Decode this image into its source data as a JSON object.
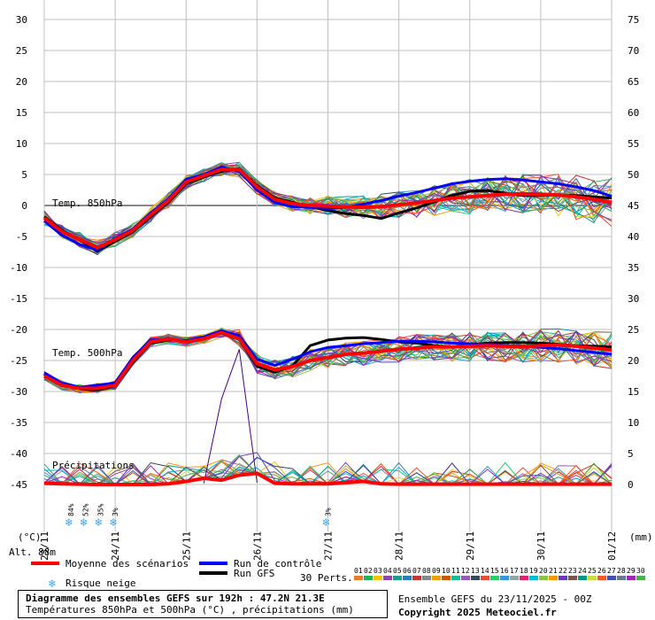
{
  "chart_data": {
    "type": "line",
    "x_ticks": [
      "23/11",
      "24/11",
      "25/11",
      "26/11",
      "27/11",
      "28/11",
      "29/11",
      "30/11",
      "01/12"
    ],
    "xlim": [
      0,
      192
    ],
    "left_axis": {
      "unit": "(°C)",
      "ticks": [
        30,
        25,
        20,
        15,
        10,
        5,
        0,
        -5,
        -10,
        -15,
        -20,
        -25,
        -30,
        -35,
        -40,
        -45
      ],
      "ylim": [
        -45,
        30
      ]
    },
    "right_axis": {
      "unit": "(mm)",
      "ticks": [
        75,
        70,
        65,
        60,
        55,
        50,
        45,
        40,
        35,
        30,
        25,
        20,
        15,
        10,
        5,
        0
      ],
      "ylim": [
        0,
        75
      ]
    },
    "panels": {
      "t850": {
        "label": "Temp. 850hPa",
        "mean": {
          "x": [
            0,
            6,
            12,
            18,
            24,
            30,
            36,
            42,
            48,
            54,
            60,
            66,
            72,
            78,
            84,
            90,
            96,
            102,
            108,
            114,
            120,
            126,
            132,
            138,
            144,
            150,
            156,
            162,
            168,
            174,
            180,
            186,
            192
          ],
          "y": [
            -2,
            -4.2,
            -5.5,
            -6.8,
            -5.5,
            -4,
            -1.5,
            0.8,
            3.8,
            4.8,
            5.8,
            5.8,
            3,
            1,
            0.3,
            0,
            -0.1,
            -0.2,
            -0.3,
            -0.2,
            0.1,
            0.4,
            0.8,
            1.2,
            1.4,
            1.6,
            1.8,
            1.9,
            1.8,
            1.7,
            1.4,
            1.0,
            0.5
          ]
        },
        "control": {
          "x": [
            0,
            6,
            12,
            18,
            24,
            30,
            36,
            42,
            48,
            54,
            60,
            66,
            72,
            78,
            84,
            90,
            96,
            102,
            108,
            114,
            120,
            126,
            132,
            138,
            144,
            150,
            156,
            162,
            168,
            174,
            180,
            186,
            192
          ],
          "y": [
            -2.5,
            -4.8,
            -6.3,
            -7.2,
            -5.3,
            -3.8,
            -1.2,
            1,
            4.2,
            5,
            6.2,
            5.5,
            2.5,
            0.5,
            -0.2,
            -0.3,
            -0.5,
            -0.3,
            0.2,
            0.8,
            1.5,
            2.1,
            2.8,
            3.5,
            3.9,
            4.2,
            4.3,
            4.1,
            3.8,
            3.5,
            3.0,
            2.4,
            1.5
          ]
        },
        "gfs": {
          "x": [
            0,
            6,
            12,
            18,
            24,
            30,
            36,
            42,
            48,
            54,
            60,
            66,
            72,
            78,
            84,
            90,
            96,
            102,
            108,
            114,
            120,
            126,
            132,
            138,
            144,
            150,
            156,
            162,
            168,
            174,
            180,
            186,
            192
          ],
          "y": [
            -1.8,
            -4,
            -5.6,
            -7.4,
            -5.8,
            -4.2,
            -1.8,
            0.5,
            3.5,
            4.6,
            5.5,
            5.9,
            3.2,
            1.2,
            0.5,
            -0.2,
            -0.8,
            -1.3,
            -1.6,
            -2.1,
            -1.2,
            -0.4,
            0.6,
            1.6,
            2.3,
            2.4,
            2.0,
            1.6,
            1.6,
            1.7,
            1.6,
            1.4,
            1.2
          ]
        }
      },
      "t500": {
        "label": "Temp. 500hPa",
        "mean": {
          "x": [
            0,
            6,
            12,
            18,
            24,
            30,
            36,
            42,
            48,
            54,
            60,
            66,
            72,
            78,
            84,
            90,
            96,
            102,
            108,
            114,
            120,
            126,
            132,
            138,
            144,
            150,
            156,
            162,
            168,
            174,
            180,
            186,
            192
          ],
          "y": [
            -27.5,
            -29,
            -29.5,
            -29.5,
            -29,
            -25,
            -22,
            -21.5,
            -22,
            -21.5,
            -20.5,
            -21.5,
            -25.5,
            -26.5,
            -26,
            -25,
            -24.5,
            -24,
            -23.8,
            -23.5,
            -23.2,
            -23,
            -22.8,
            -22.8,
            -22.7,
            -22.6,
            -22.7,
            -22.8,
            -22.6,
            -22.5,
            -22.7,
            -23,
            -23.3
          ]
        },
        "control": {
          "x": [
            0,
            6,
            12,
            18,
            24,
            30,
            36,
            42,
            48,
            54,
            60,
            66,
            72,
            78,
            84,
            90,
            96,
            102,
            108,
            114,
            120,
            126,
            132,
            138,
            144,
            150,
            156,
            162,
            168,
            174,
            180,
            186,
            192
          ],
          "y": [
            -27,
            -28.7,
            -29.3,
            -29,
            -28.6,
            -24.5,
            -21.7,
            -21.6,
            -21.9,
            -21.2,
            -20.2,
            -21,
            -24.8,
            -25.8,
            -24.8,
            -23.6,
            -22.9,
            -22.6,
            -22.3,
            -22.1,
            -21.9,
            -21.9,
            -22,
            -22.2,
            -22.3,
            -22.4,
            -22.6,
            -22.7,
            -22.9,
            -23.1,
            -23.4,
            -23.7,
            -24
          ]
        },
        "gfs": {
          "x": [
            0,
            6,
            12,
            18,
            24,
            30,
            36,
            42,
            48,
            54,
            60,
            66,
            72,
            78,
            84,
            90,
            96,
            102,
            108,
            114,
            120,
            126,
            132,
            138,
            144,
            150,
            156,
            162,
            168,
            174,
            180,
            186,
            192
          ],
          "y": [
            -27.2,
            -28.8,
            -29.6,
            -29.8,
            -29.1,
            -25.3,
            -22.2,
            -21.7,
            -21.8,
            -21.4,
            -20.6,
            -21.6,
            -25.9,
            -26.9,
            -25.9,
            -22.6,
            -21.7,
            -21.4,
            -21.3,
            -21.6,
            -22,
            -22.2,
            -22.6,
            -22.8,
            -22.5,
            -22.2,
            -22.1,
            -22.1,
            -22.2,
            -22.4,
            -22.6,
            -22.7,
            -22.8
          ]
        }
      },
      "precip": {
        "label": "Précipitations",
        "mean_mm": {
          "x": [
            0,
            6,
            12,
            18,
            24,
            30,
            36,
            42,
            48,
            54,
            60,
            66,
            72,
            78,
            84,
            90,
            96,
            102,
            108,
            114,
            120,
            126,
            132,
            138,
            144,
            150,
            156,
            162,
            168,
            174,
            180,
            186,
            192
          ],
          "y": [
            0.2,
            0.1,
            0.05,
            0,
            0,
            0,
            0,
            0.1,
            0.5,
            1,
            0.7,
            1.5,
            1.8,
            0.2,
            0.1,
            0.1,
            0.1,
            0.3,
            0.5,
            0.1,
            0.05,
            0.05,
            0.05,
            0.05,
            0.05,
            0.05,
            0.05,
            0.05,
            0.05,
            0.05,
            0.05,
            0.05,
            0.05
          ]
        },
        "spike_mm": {
          "x": [
            54,
            60,
            66,
            72
          ],
          "y": [
            0.2,
            13.8,
            21.8,
            0.3
          ]
        }
      }
    },
    "snow_risk": [
      {
        "x": 9,
        "pct": "84%"
      },
      {
        "x": 14,
        "pct": "52%"
      },
      {
        "x": 19,
        "pct": "35%"
      },
      {
        "x": 24,
        "pct": "3%"
      },
      {
        "x": 96,
        "pct": "3%"
      }
    ],
    "perturbation_count": 30,
    "perturbation_colors": [
      "#e67e22",
      "#27ae60",
      "#f1c40f",
      "#8e44ad",
      "#16a085",
      "#2980b9",
      "#c0392b",
      "#7f8c8d",
      "#f39c12",
      "#d35400",
      "#1abc9c",
      "#9b59b6",
      "#34495e",
      "#e74c3c",
      "#2ecc71",
      "#3498db",
      "#95a5a6",
      "#e91e63",
      "#00bcd4",
      "#8bc34a",
      "#ff9800",
      "#673ab7",
      "#795548",
      "#009688",
      "#cddc39",
      "#ff5722",
      "#3f51b5",
      "#607d8b",
      "#9c27b0",
      "#4caf50"
    ]
  },
  "labels": {
    "left_unit": "(°C)",
    "right_unit": "(mm)",
    "alt": "Alt. 88m",
    "legend_mean": "Moyenne des scénarios",
    "legend_control": "Run de contrôle",
    "legend_gfs": "Run GFS",
    "legend_snow": "Risque neige",
    "perts_label": "30 Perts.",
    "pert_numbers": [
      "01",
      "02",
      "03",
      "04",
      "05",
      "06",
      "07",
      "08",
      "09",
      "10",
      "11",
      "12",
      "13",
      "14",
      "15",
      "16",
      "17",
      "18",
      "19",
      "20",
      "21",
      "22",
      "23",
      "24",
      "25",
      "26",
      "27",
      "28",
      "29",
      "30"
    ]
  },
  "footer": {
    "title": "Diagramme des ensembles GEFS sur 192h : 47.2N 21.3E",
    "subtitle": "Températures 850hPa et 500hPa (°C) , précipitations (mm)",
    "ensemble": "Ensemble GEFS du 23/11/2025 - 00Z",
    "copyright": "Copyright 2025 Meteociel.fr"
  },
  "colors": {
    "mean": "#ff0000",
    "control": "#0000ff",
    "gfs": "#000000",
    "grid": "#c0c0c0",
    "snow": "#3ea6e6"
  }
}
